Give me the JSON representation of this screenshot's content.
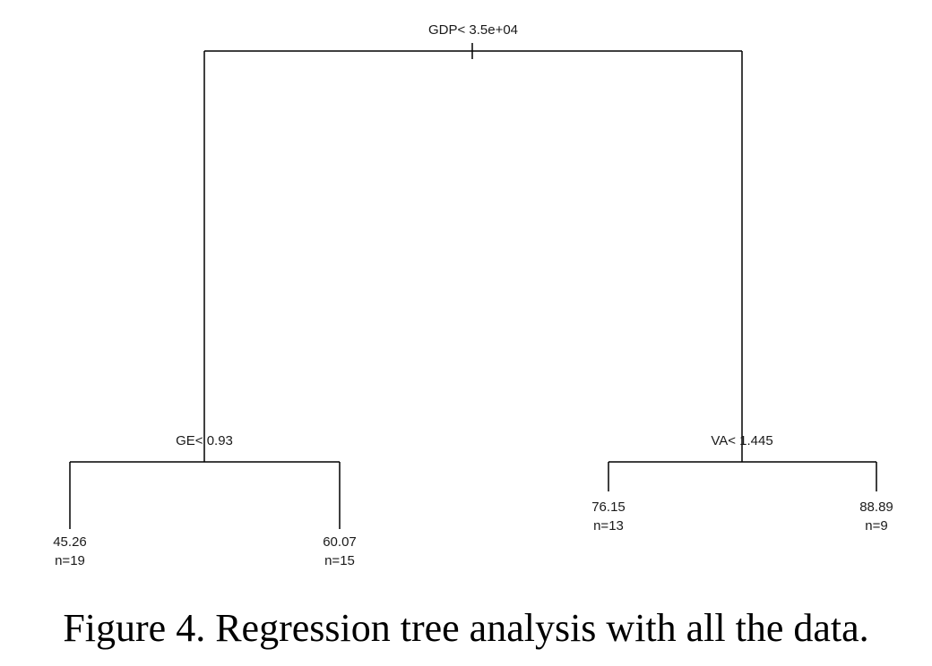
{
  "tree": {
    "root": {
      "split_label": "GDP< 3.5e+04",
      "left": {
        "split_label": "GE< 0.93",
        "left": {
          "value": "45.26",
          "n_label": "n=19"
        },
        "right": {
          "value": "60.07",
          "n_label": "n=15"
        }
      },
      "right": {
        "split_label": "VA< 1.445",
        "left": {
          "value": "76.15",
          "n_label": "n=13"
        },
        "right": {
          "value": "88.89",
          "n_label": "n=9"
        }
      }
    }
  },
  "caption": "Figure 4. Regression tree analysis with all the data."
}
